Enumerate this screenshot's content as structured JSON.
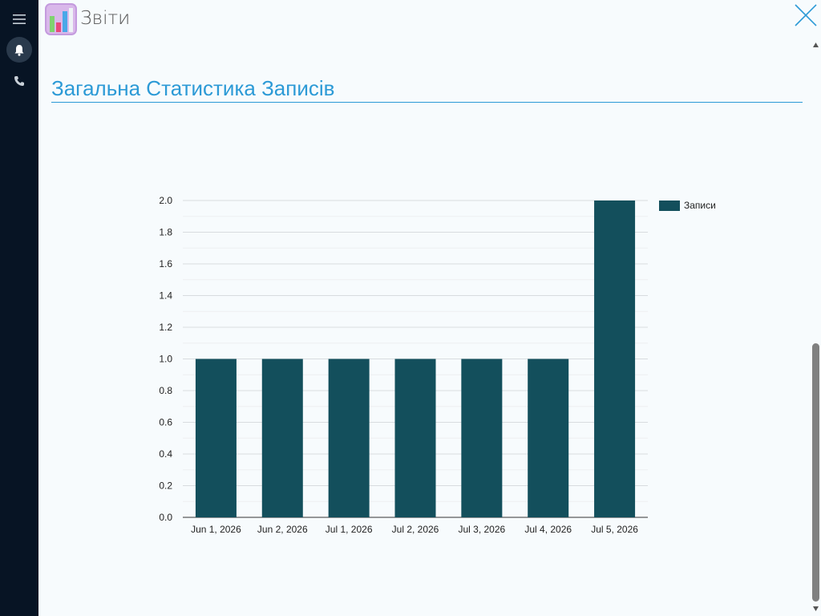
{
  "app": {
    "title": "Звіти",
    "icon": "bar-chart-app-icon",
    "accent_color": "#2c9ad6"
  },
  "sidebar": {
    "items": [
      {
        "icon": "menu-icon"
      },
      {
        "icon": "bell-icon",
        "active": true
      },
      {
        "icon": "phone-icon"
      }
    ]
  },
  "section": {
    "title": "Загальна Статистика Записів"
  },
  "chart_data": {
    "type": "bar",
    "categories": [
      "Jun 1, 2026",
      "Jun 2, 2026",
      "Jul 1, 2026",
      "Jul 2, 2026",
      "Jul 3, 2026",
      "Jul 4, 2026",
      "Jul 5, 2026"
    ],
    "series": [
      {
        "name": "Записи",
        "values": [
          1,
          1,
          1,
          1,
          1,
          1,
          2
        ],
        "color": "#134f5c"
      }
    ],
    "ylim": [
      0,
      2
    ],
    "yticks": [
      "0.0",
      "0.2",
      "0.4",
      "0.6",
      "0.8",
      "1.0",
      "1.2",
      "1.4",
      "1.6",
      "1.8",
      "2.0"
    ],
    "grid": true,
    "legend_position": "right",
    "title": "",
    "xlabel": "",
    "ylabel": ""
  }
}
